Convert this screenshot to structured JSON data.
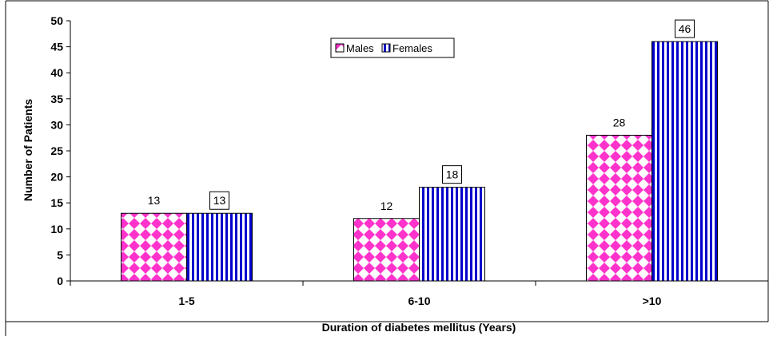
{
  "chart_data": {
    "type": "bar",
    "categories": [
      "1-5",
      "6-10",
      ">10"
    ],
    "series": [
      {
        "name": "Males",
        "values": [
          13,
          12,
          28
        ],
        "pattern": "checker",
        "color": "#ff33cc"
      },
      {
        "name": "Females",
        "values": [
          13,
          18,
          46
        ],
        "pattern": "stripes",
        "color": "#0000cc"
      }
    ],
    "xlabel": "Duration of diabetes mellitus (Years)",
    "ylabel": "Number of Patients",
    "ylim": [
      0,
      50
    ],
    "yticks": [
      0,
      5,
      10,
      15,
      20,
      25,
      30,
      35,
      40,
      45,
      50
    ],
    "grid": false,
    "legend_position": "top-center",
    "data_label_boxed": [
      false,
      true
    ]
  }
}
